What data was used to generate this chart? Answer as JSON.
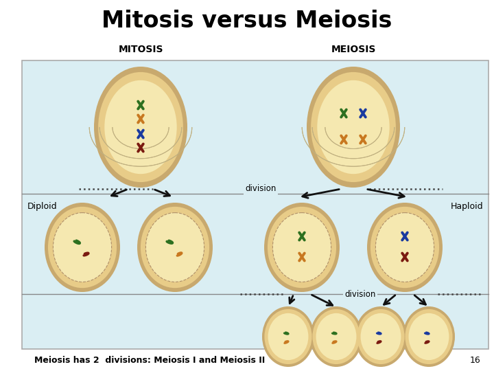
{
  "title": "Mitosis versus Meiosis",
  "title_fontsize": 24,
  "bg_color": "#ffffff",
  "panel_bg": "#daeef3",
  "mitosis_label": "MITOSIS",
  "meiosis_label": "MEIOSIS",
  "diploid_label": "Diploid",
  "haploid_label": "Haploid",
  "division_label": "division",
  "bottom_text": "Meiosis has 2  divisions: Meiosis I and Meiosis II",
  "page_num": "16",
  "cell_outer_color": "#c8a96e",
  "cell_mid_color": "#e8cc88",
  "cell_inner_color": "#f5e8b0",
  "chr_green": "#2d7020",
  "chr_orange": "#c87820",
  "chr_blue": "#1a3a9f",
  "chr_darkred": "#7a1a10",
  "spindle_color": "#c0b080",
  "arrow_color": "#111111",
  "dot_color": "#444444",
  "panel_border": "#aaaaaa",
  "divider_color": "#888888"
}
